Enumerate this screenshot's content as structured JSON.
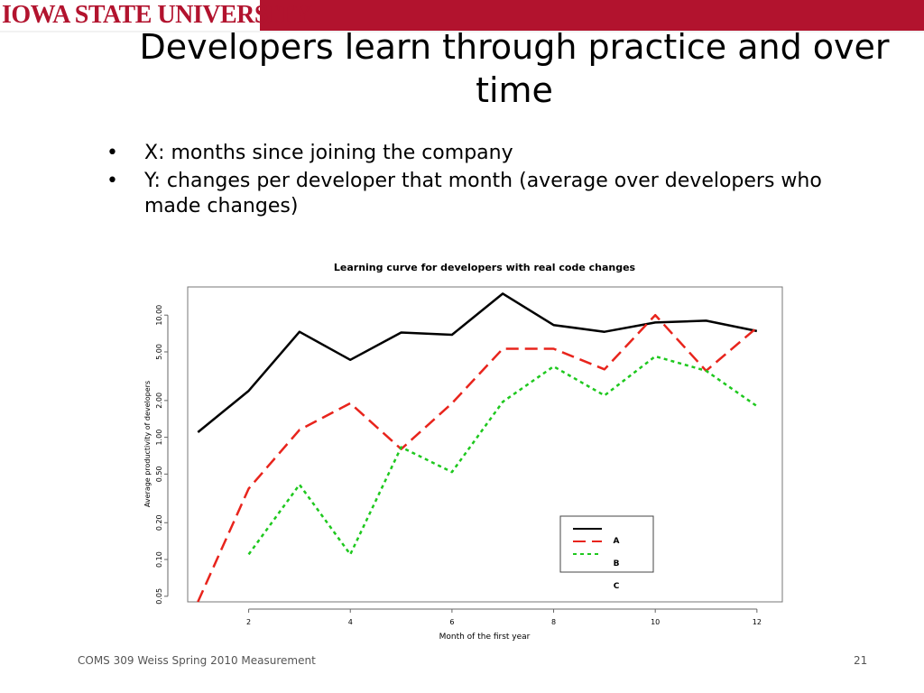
{
  "header": {
    "brand": "IOWA STATE UNIVERSITY",
    "brand_color": "#b2132e"
  },
  "slide": {
    "title": "Developers learn through practice and over time",
    "bullets": [
      "X: months since joining the company",
      "Y: changes per developer that month (average over developers who made changes)"
    ]
  },
  "chart_data": {
    "type": "line",
    "title": "Learning curve for developers with real code changes",
    "xlabel": "Month of the first year",
    "ylabel": "Average productivity of developers",
    "y_scale": "log",
    "ylim": [
      0.045,
      17
    ],
    "xlim": [
      0.8,
      12.5
    ],
    "x_ticks": [
      2,
      4,
      6,
      8,
      10,
      12
    ],
    "y_ticks": [
      0.05,
      0.1,
      0.2,
      0.5,
      1.0,
      2.0,
      5.0,
      10.0
    ],
    "y_tick_labels": [
      "0.05",
      "0.10",
      "0.20",
      "0.50",
      "1.00",
      "2.00",
      "5.00",
      "10.00"
    ],
    "grid": false,
    "legend_position": "bottom-right",
    "legend_labels": [
      "A",
      "B",
      "C"
    ],
    "series": [
      {
        "name": "A",
        "color": "#000000",
        "dash": "solid",
        "x": [
          1,
          2,
          3,
          4,
          5,
          6,
          7,
          8,
          9,
          10,
          11,
          12
        ],
        "y": [
          1.1,
          2.4,
          7.3,
          4.3,
          7.2,
          6.9,
          15.0,
          8.3,
          7.3,
          8.7,
          9.0,
          7.4
        ]
      },
      {
        "name": "B",
        "color": "#e8241c",
        "dash": "dashed",
        "x": [
          1,
          2,
          3,
          4,
          5,
          6,
          7,
          8,
          9,
          10,
          11,
          12
        ],
        "y": [
          0.045,
          0.38,
          1.15,
          1.9,
          0.8,
          1.9,
          5.3,
          5.3,
          3.6,
          10.0,
          3.5,
          7.9
        ]
      },
      {
        "name": "C",
        "color": "#1ec81e",
        "dash": "dotted",
        "x": [
          2,
          3,
          4,
          5,
          6,
          7,
          8,
          9,
          10,
          11,
          12
        ],
        "y": [
          0.11,
          0.41,
          0.11,
          0.83,
          0.52,
          1.95,
          3.8,
          2.2,
          4.6,
          3.5,
          1.8
        ]
      }
    ]
  },
  "footer": {
    "text": "COMS 309 Weiss Spring 2010 Measurement",
    "page": "21"
  }
}
